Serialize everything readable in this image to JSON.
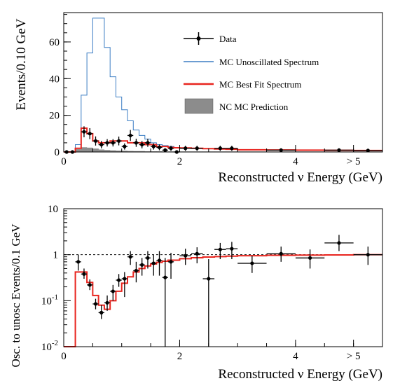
{
  "chart_data": [
    {
      "type": "line",
      "panel": "top",
      "xlabel": "Reconstructed ν Energy (GeV)",
      "ylabel": "Events/0.10 GeV",
      "xlim": [
        0,
        5.5
      ],
      "ylim": [
        0,
        76
      ],
      "x_ticks": [
        {
          "v": 0,
          "label": "0"
        },
        {
          "v": 2,
          "label": "2"
        },
        {
          "v": 4,
          "label": "4"
        },
        {
          "v": 5,
          "label": "> 5"
        }
      ],
      "y_ticks": [
        {
          "v": 0,
          "label": "0"
        },
        {
          "v": 20,
          "label": "20"
        },
        {
          "v": 40,
          "label": "40"
        },
        {
          "v": 60,
          "label": "60"
        }
      ],
      "legend": {
        "placement": "top-right",
        "entries": [
          {
            "label": "Data",
            "kind": "data"
          },
          {
            "label": "MC Unoscillated Spectrum",
            "kind": "line",
            "color": "#3b7dc4"
          },
          {
            "label": "MC Best Fit Spectrum",
            "kind": "line",
            "color": "#e8251f"
          },
          {
            "label": "NC MC Prediction",
            "kind": "box",
            "color": "#8c8c8c"
          }
        ]
      },
      "edges": [
        0,
        0.1,
        0.2,
        0.3,
        0.4,
        0.5,
        0.6,
        0.7,
        0.8,
        0.9,
        1.0,
        1.1,
        1.2,
        1.3,
        1.4,
        1.5,
        1.6,
        1.7,
        1.8,
        1.9,
        2.0,
        2.2,
        2.4,
        2.6,
        2.8,
        3.0,
        3.5,
        4.0,
        4.5,
        5.0,
        5.5
      ],
      "series": [
        {
          "name": "MC Unoscillated Spectrum",
          "color": "#3b7dc4",
          "values": [
            0,
            0,
            4,
            31,
            54,
            73,
            73,
            57,
            41,
            30,
            23,
            17,
            12,
            9,
            7,
            5,
            4,
            3.5,
            3,
            2.5,
            2.3,
            2,
            1.8,
            1.6,
            1.5,
            1.2,
            1.1,
            1.0,
            0.9,
            0.8
          ]
        },
        {
          "name": "MC Best Fit Spectrum",
          "color": "#e8251f",
          "values": [
            0,
            0,
            2,
            13,
            10,
            6,
            5,
            5,
            6,
            6,
            6,
            5,
            5,
            5,
            4,
            4,
            3,
            3,
            2.5,
            2.3,
            2.2,
            2,
            1.8,
            1.6,
            1.5,
            1.2,
            1.1,
            1.0,
            0.9,
            0.8
          ]
        },
        {
          "name": "NC MC Prediction",
          "color": "#8c8c8c",
          "values": [
            0,
            0,
            1.5,
            2.5,
            2.3,
            1.8,
            1.3,
            1.0,
            0.8,
            0.7,
            0.6,
            0.5,
            0.4,
            0.4,
            0.3,
            0.3,
            0.3,
            0.2,
            0.2,
            0.2,
            0.2,
            0.2,
            0.2,
            0.2,
            0.2,
            0.2,
            0.2,
            0.2,
            0.2,
            0.2
          ]
        },
        {
          "name": "Data",
          "color": "#000000",
          "points": [
            {
              "x": 0.05,
              "y": 0,
              "err": 0
            },
            {
              "x": 0.15,
              "y": 0,
              "err": 0
            },
            {
              "x": 0.35,
              "y": 11,
              "err": 3
            },
            {
              "x": 0.45,
              "y": 10,
              "err": 3
            },
            {
              "x": 0.55,
              "y": 6,
              "err": 2.5
            },
            {
              "x": 0.65,
              "y": 4,
              "err": 2
            },
            {
              "x": 0.75,
              "y": 5,
              "err": 2
            },
            {
              "x": 0.85,
              "y": 5,
              "err": 2
            },
            {
              "x": 0.95,
              "y": 6,
              "err": 2.4
            },
            {
              "x": 1.05,
              "y": 3,
              "err": 1.7
            },
            {
              "x": 1.15,
              "y": 9,
              "err": 3
            },
            {
              "x": 1.25,
              "y": 5,
              "err": 2.2
            },
            {
              "x": 1.35,
              "y": 4,
              "err": 2
            },
            {
              "x": 1.45,
              "y": 5,
              "err": 2.2
            },
            {
              "x": 1.55,
              "y": 3,
              "err": 1.7
            },
            {
              "x": 1.65,
              "y": 2.5,
              "err": 1.6
            },
            {
              "x": 1.75,
              "y": 1,
              "err": 1
            },
            {
              "x": 1.85,
              "y": 2,
              "err": 1.4
            },
            {
              "x": 1.95,
              "y": 0,
              "err": 0
            },
            {
              "x": 2.1,
              "y": 2,
              "err": 1.4
            },
            {
              "x": 2.3,
              "y": 2,
              "err": 1.4
            },
            {
              "x": 2.7,
              "y": 2,
              "err": 1.4
            },
            {
              "x": 2.9,
              "y": 2,
              "err": 1.4
            },
            {
              "x": 3.75,
              "y": 1,
              "err": 1
            },
            {
              "x": 4.75,
              "y": 1,
              "err": 1
            },
            {
              "x": 5.25,
              "y": 0.8,
              "err": 0.9
            }
          ]
        }
      ]
    },
    {
      "type": "line",
      "panel": "bottom",
      "log_y": true,
      "xlabel": "Reconstructed ν Energy (GeV)",
      "ylabel": "Osc. to unosc Events/0.1 GeV",
      "xlim": [
        0,
        5.5
      ],
      "ylim": [
        0.01,
        10
      ],
      "x_ticks": [
        {
          "v": 0,
          "label": "0"
        },
        {
          "v": 2,
          "label": "2"
        },
        {
          "v": 4,
          "label": "4"
        },
        {
          "v": 5,
          "label": "> 5"
        }
      ],
      "y_ticks": [
        {
          "v": 0.01,
          "base": "10",
          "exp": "-2"
        },
        {
          "v": 0.1,
          "base": "10",
          "exp": "-1"
        },
        {
          "v": 1,
          "base": "1",
          "exp": ""
        },
        {
          "v": 10,
          "base": "10",
          "exp": ""
        }
      ],
      "reference_line": 1,
      "best_fit": {
        "color": "#e8251f",
        "edges": [
          0,
          0.1,
          0.2,
          0.3,
          0.4,
          0.5,
          0.6,
          0.7,
          0.8,
          0.9,
          1.0,
          1.1,
          1.2,
          1.3,
          1.4,
          1.5,
          1.6,
          1.7,
          1.8,
          2.0,
          2.2,
          2.4,
          2.6,
          2.8,
          3.0,
          3.5,
          4.0,
          4.5,
          5.0,
          5.5
        ],
        "values": [
          0.01,
          0.01,
          0.42,
          0.42,
          0.25,
          0.13,
          0.08,
          0.065,
          0.1,
          0.16,
          0.24,
          0.33,
          0.42,
          0.5,
          0.57,
          0.63,
          0.68,
          0.72,
          0.76,
          0.82,
          0.86,
          0.89,
          0.91,
          0.93,
          0.95,
          0.97,
          0.98,
          0.99,
          1.0
        ]
      },
      "points": [
        {
          "x": 0.25,
          "y": 0.7,
          "xerr": 0.05,
          "ylo": 0.45,
          "yhi": 1.0
        },
        {
          "x": 0.35,
          "y": 0.38,
          "xerr": 0.05,
          "ylo": 0.3,
          "yhi": 0.5
        },
        {
          "x": 0.45,
          "y": 0.22,
          "xerr": 0.05,
          "ylo": 0.17,
          "yhi": 0.29
        },
        {
          "x": 0.55,
          "y": 0.085,
          "xerr": 0.05,
          "ylo": 0.065,
          "yhi": 0.11
        },
        {
          "x": 0.65,
          "y": 0.055,
          "xerr": 0.05,
          "ylo": 0.04,
          "yhi": 0.08
        },
        {
          "x": 0.75,
          "y": 0.09,
          "xerr": 0.05,
          "ylo": 0.06,
          "yhi": 0.13
        },
        {
          "x": 0.85,
          "y": 0.16,
          "xerr": 0.05,
          "ylo": 0.1,
          "yhi": 0.22
        },
        {
          "x": 0.95,
          "y": 0.28,
          "xerr": 0.05,
          "ylo": 0.2,
          "yhi": 0.38
        },
        {
          "x": 1.05,
          "y": 0.3,
          "xerr": 0.05,
          "ylo": 0.12,
          "yhi": 0.42
        },
        {
          "x": 1.15,
          "y": 0.9,
          "xerr": 0.05,
          "ylo": 0.6,
          "yhi": 1.2
        },
        {
          "x": 1.25,
          "y": 0.45,
          "xerr": 0.05,
          "ylo": 0.25,
          "yhi": 0.7
        },
        {
          "x": 1.35,
          "y": 0.6,
          "xerr": 0.05,
          "ylo": 0.35,
          "yhi": 0.85
        },
        {
          "x": 1.45,
          "y": 0.85,
          "xerr": 0.05,
          "ylo": 0.5,
          "yhi": 1.2
        },
        {
          "x": 1.55,
          "y": 0.65,
          "xerr": 0.05,
          "ylo": 0.35,
          "yhi": 1.0
        },
        {
          "x": 1.65,
          "y": 0.75,
          "xerr": 0.05,
          "ylo": 0.35,
          "yhi": 1.2
        },
        {
          "x": 1.75,
          "y": 0.32,
          "xerr": 0.05,
          "ylo": 0.01,
          "yhi": 0.85
        },
        {
          "x": 1.85,
          "y": 0.7,
          "xerr": 0.05,
          "ylo": 0.3,
          "yhi": 1.1
        },
        {
          "x": 2.1,
          "y": 0.95,
          "xerr": 0.1,
          "ylo": 0.6,
          "yhi": 1.35
        },
        {
          "x": 2.3,
          "y": 1.05,
          "xerr": 0.1,
          "ylo": 0.65,
          "yhi": 1.45
        },
        {
          "x": 2.5,
          "y": 0.3,
          "xerr": 0.1,
          "ylo": 0.01,
          "yhi": 0.8
        },
        {
          "x": 2.7,
          "y": 1.3,
          "xerr": 0.1,
          "ylo": 0.8,
          "yhi": 1.8
        },
        {
          "x": 2.9,
          "y": 1.35,
          "xerr": 0.1,
          "ylo": 0.8,
          "yhi": 1.9
        },
        {
          "x": 3.25,
          "y": 0.65,
          "xerr": 0.25,
          "ylo": 0.4,
          "yhi": 0.95
        },
        {
          "x": 3.75,
          "y": 1.05,
          "xerr": 0.25,
          "ylo": 0.7,
          "yhi": 1.5
        },
        {
          "x": 4.25,
          "y": 0.85,
          "xerr": 0.25,
          "ylo": 0.5,
          "yhi": 1.3
        },
        {
          "x": 4.75,
          "y": 1.8,
          "xerr": 0.25,
          "ylo": 1.2,
          "yhi": 2.7
        },
        {
          "x": 5.25,
          "y": 1.0,
          "xerr": 0.25,
          "ylo": 0.6,
          "yhi": 1.5
        }
      ]
    }
  ]
}
